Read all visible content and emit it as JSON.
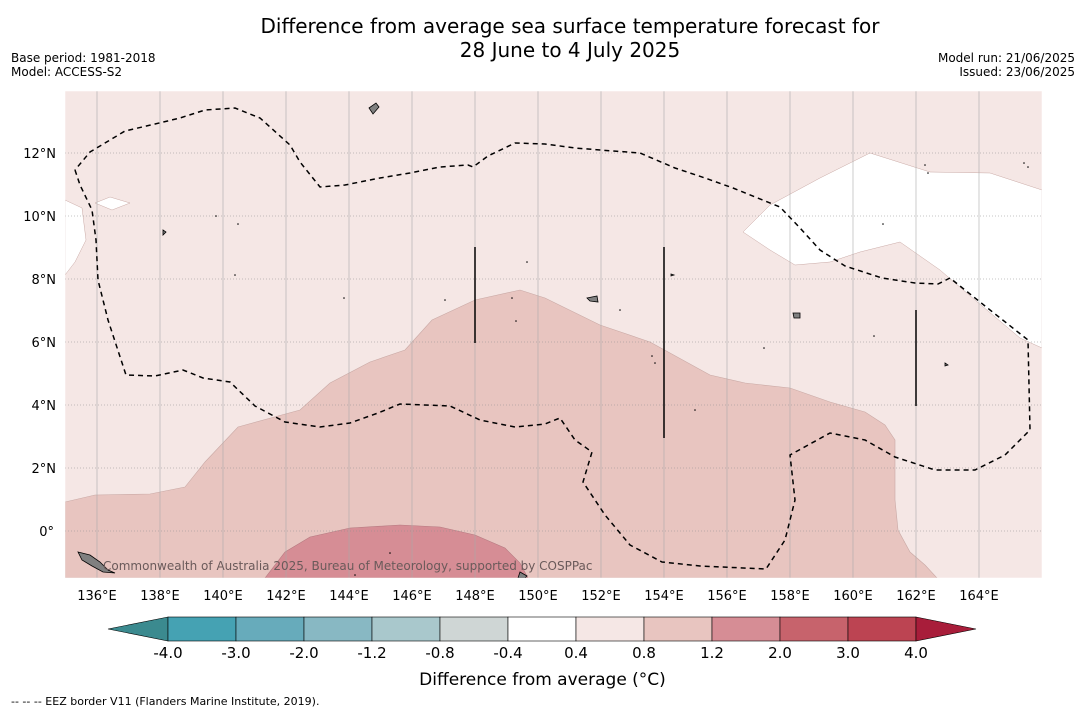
{
  "title_line1": "Difference from average sea surface temperature forecast for",
  "title_line2": "28 June to 4 July 2025",
  "base_period": "Base period: 1981-2018",
  "model": "Model: ACCESS-S2",
  "model_run": "Model run: 21/06/2025",
  "issued": "Issued: 23/06/2025",
  "copyright": "Commonwealth of Australia 2025, Bureau of Meteorology, supported by COSPPac",
  "lon_labels": [
    "136°E",
    "138°E",
    "140°E",
    "142°E",
    "144°E",
    "146°E",
    "148°E",
    "150°E",
    "152°E",
    "154°E",
    "156°E",
    "158°E",
    "160°E",
    "162°E",
    "164°E"
  ],
  "lat_labels": [
    "12°N",
    "10°N",
    "8°N",
    "6°N",
    "4°N",
    "2°N",
    "0°"
  ],
  "colorbar": {
    "ticks": [
      "-4.0",
      "-3.0",
      "-2.0",
      "-1.2",
      "-0.8",
      "-0.4",
      "0.4",
      "0.8",
      "1.2",
      "2.0",
      "3.0",
      "4.0"
    ],
    "colors": [
      "#45a2b3",
      "#67abbb",
      "#88b8c3",
      "#a9c8cc",
      "#cfd6d5",
      "#ffffff",
      "#f5e7e5",
      "#e8c5c0",
      "#d68d95",
      "#c7636c",
      "#bc4452"
    ],
    "under_color": "#3b8a8f",
    "over_color": "#a81d3a",
    "label": "Difference from average (°C)"
  },
  "eez_legend": "--  --  -- EEZ border V11 (Flanders Marine Institute, 2019)."
}
